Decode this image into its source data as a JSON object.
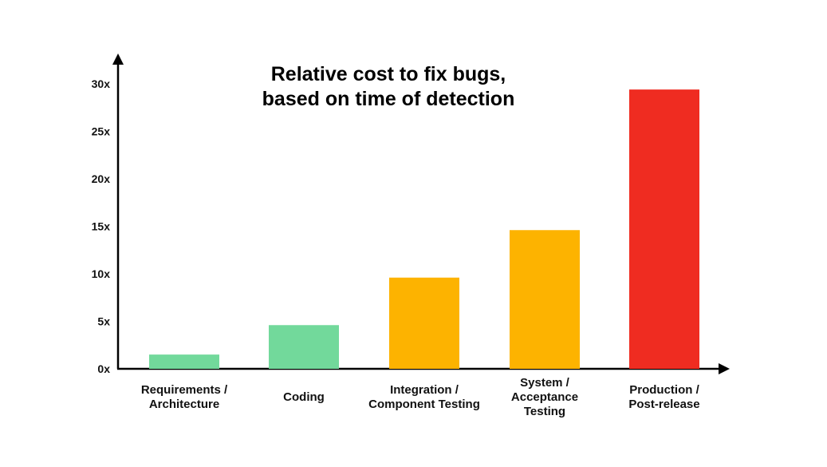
{
  "chart_data": {
    "type": "bar",
    "title_lines": [
      "Relative cost to fix bugs,",
      "based on time of detection"
    ],
    "categories": [
      [
        "Requirements /",
        "Architecture"
      ],
      [
        "Coding"
      ],
      [
        "Integration /",
        "Component Testing"
      ],
      [
        "System /",
        "Acceptance",
        "Testing"
      ],
      [
        "Production /",
        "Post-release"
      ]
    ],
    "values": [
      1.5,
      4.6,
      9.6,
      14.6,
      29.4
    ],
    "colors": [
      "#72d99b",
      "#72d99b",
      "#fdb300",
      "#fdb300",
      "#ef2c21"
    ],
    "ylim": [
      0,
      30
    ],
    "yticks": [
      0,
      5,
      10,
      15,
      20,
      25,
      30
    ],
    "ytick_labels": [
      "0x",
      "5x",
      "10x",
      "15x",
      "20x",
      "25x",
      "30x"
    ],
    "xlabel": "",
    "ylabel": "",
    "grid": false,
    "legend": "none"
  }
}
